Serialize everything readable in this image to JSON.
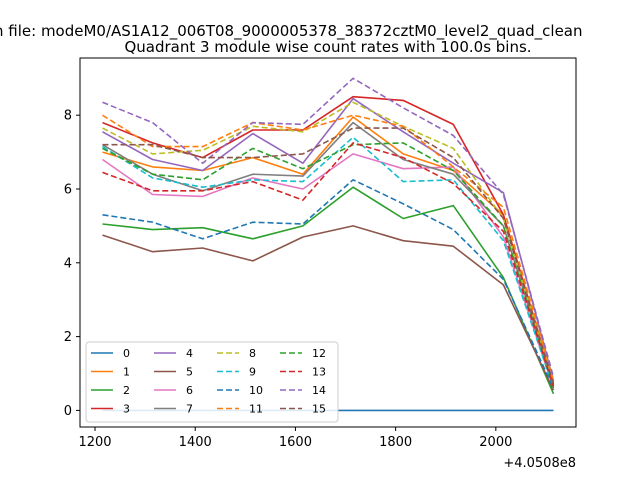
{
  "chart_data": {
    "type": "line",
    "suptitle": "n file: modeM0/AS1A12_006T08_9000005378_38372cztM0_level2_quad_clean",
    "title": "Quadrant 3 module wise count rates with 100.0s bins.",
    "xlabel": "",
    "ylabel": "",
    "x_offset_label": "+4.0508e8",
    "xlim": [
      1170,
      2160
    ],
    "ylim": [
      -0.45,
      9.55
    ],
    "x_ticks": [
      1200,
      1400,
      1600,
      1800,
      2000
    ],
    "x_tick_labels": [
      "1200",
      "1400",
      "1600",
      "1800",
      "2000"
    ],
    "y_ticks": [
      0,
      2,
      4,
      6,
      8
    ],
    "y_tick_labels": [
      "0",
      "2",
      "4",
      "6",
      "8"
    ],
    "x": [
      1215,
      1315,
      1415,
      1515,
      1615,
      1715,
      1815,
      1915,
      2015,
      2115
    ],
    "legend_location": "lower-left",
    "series": [
      {
        "name": "0",
        "color": "#1f77b4",
        "dash": "solid",
        "values": [
          0,
          0,
          0,
          0,
          0,
          0,
          0,
          0,
          0,
          0
        ]
      },
      {
        "name": "1",
        "color": "#ff7f0e",
        "dash": "solid",
        "values": [
          7.0,
          6.6,
          6.5,
          6.85,
          6.4,
          7.95,
          6.95,
          6.5,
          5.3,
          0.75
        ]
      },
      {
        "name": "2",
        "color": "#2ca02c",
        "dash": "solid",
        "values": [
          5.05,
          4.9,
          4.95,
          4.65,
          5.0,
          6.05,
          5.2,
          5.55,
          3.6,
          0.45
        ]
      },
      {
        "name": "3",
        "color": "#d62728",
        "dash": "solid",
        "values": [
          7.8,
          7.25,
          6.85,
          7.6,
          7.6,
          8.5,
          8.4,
          7.75,
          5.3,
          0.7
        ]
      },
      {
        "name": "4",
        "color": "#9467bd",
        "dash": "solid",
        "values": [
          7.55,
          6.8,
          6.5,
          7.5,
          6.7,
          8.45,
          7.55,
          6.7,
          5.9,
          0.8
        ]
      },
      {
        "name": "5",
        "color": "#8c564b",
        "dash": "solid",
        "values": [
          4.75,
          4.3,
          4.4,
          4.05,
          4.7,
          5.0,
          4.6,
          4.45,
          3.4,
          0.55
        ]
      },
      {
        "name": "6",
        "color": "#e377c2",
        "dash": "solid",
        "values": [
          6.8,
          5.85,
          5.8,
          6.3,
          6.0,
          6.95,
          6.55,
          6.6,
          4.7,
          0.6
        ]
      },
      {
        "name": "7",
        "color": "#7f7f7f",
        "dash": "solid",
        "values": [
          7.2,
          6.4,
          5.95,
          6.4,
          6.35,
          7.8,
          6.8,
          6.4,
          5.0,
          0.65
        ]
      },
      {
        "name": "8",
        "color": "#bcbd22",
        "dash": "dashed",
        "values": [
          7.65,
          6.95,
          7.05,
          7.7,
          7.55,
          8.35,
          7.7,
          7.1,
          5.2,
          0.75
        ]
      },
      {
        "name": "9",
        "color": "#17becf",
        "dash": "dashed",
        "values": [
          7.15,
          6.3,
          6.05,
          6.25,
          6.2,
          7.4,
          6.2,
          6.25,
          4.6,
          0.6
        ]
      },
      {
        "name": "10",
        "color": "#1f77b4",
        "dash": "dashed",
        "values": [
          5.3,
          5.1,
          4.65,
          5.1,
          5.05,
          6.25,
          5.6,
          4.9,
          3.55,
          0.6
        ]
      },
      {
        "name": "11",
        "color": "#ff7f0e",
        "dash": "dashed",
        "values": [
          8.0,
          7.15,
          7.15,
          7.8,
          7.6,
          8.0,
          7.7,
          6.6,
          5.5,
          0.8
        ]
      },
      {
        "name": "12",
        "color": "#2ca02c",
        "dash": "dashed",
        "values": [
          7.1,
          6.4,
          6.25,
          7.1,
          6.55,
          7.2,
          7.25,
          6.5,
          5.0,
          0.6
        ]
      },
      {
        "name": "13",
        "color": "#d62728",
        "dash": "dashed",
        "values": [
          6.45,
          5.95,
          5.95,
          6.2,
          5.7,
          7.25,
          6.85,
          6.15,
          4.85,
          0.65
        ]
      },
      {
        "name": "14",
        "color": "#9467bd",
        "dash": "dashed",
        "values": [
          8.35,
          7.8,
          6.7,
          7.8,
          7.75,
          9.0,
          8.2,
          7.45,
          5.85,
          0.9
        ]
      },
      {
        "name": "15",
        "color": "#8c564b",
        "dash": "dashed",
        "values": [
          7.2,
          7.2,
          6.85,
          6.85,
          6.95,
          7.65,
          7.65,
          6.85,
          5.2,
          0.7
        ]
      }
    ]
  }
}
